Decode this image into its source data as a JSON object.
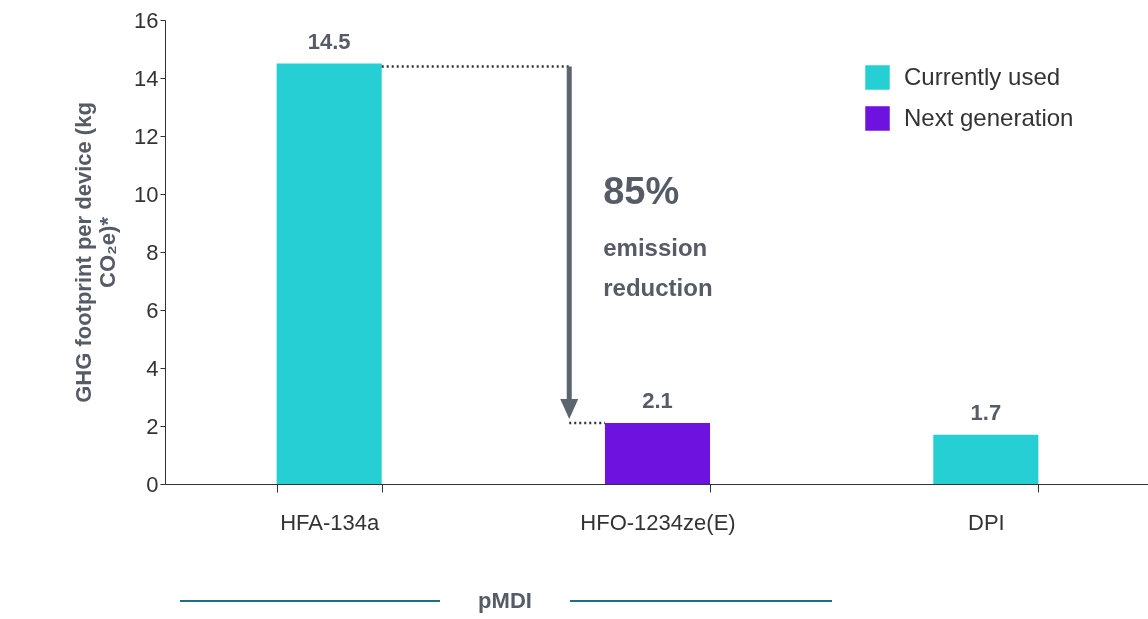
{
  "chart_data": {
    "type": "bar",
    "categories": [
      "HFA-134a",
      "HFO-1234ze(E)",
      "DPI"
    ],
    "series": [
      {
        "name": "Currently used",
        "color": "#26cfd3",
        "values": [
          14.5,
          null,
          1.7
        ]
      },
      {
        "name": "Next generation",
        "color": "#6e12e0",
        "values": [
          null,
          2.1,
          null
        ]
      }
    ],
    "ylabel": "GHG footprint per device (kg CO₂e)*",
    "ylim": [
      0,
      16
    ],
    "yticks": [
      0,
      2,
      4,
      6,
      8,
      10,
      12,
      14,
      16
    ],
    "grid": false,
    "legend": "top right",
    "data_labels": true,
    "annotations": [
      "85%",
      "emission reduction",
      "pMDI"
    ]
  }
}
